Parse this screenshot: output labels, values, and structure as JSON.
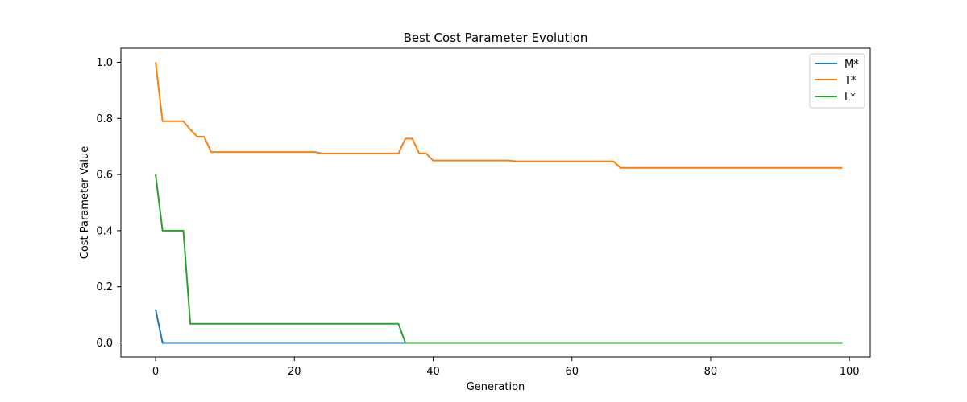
{
  "chart_data": {
    "type": "line",
    "title": "Best Cost Parameter Evolution",
    "xlabel": "Generation",
    "ylabel": "Cost Parameter Value",
    "xlim": [
      -5,
      103
    ],
    "ylim": [
      -0.05,
      1.05
    ],
    "x_ticks": [
      0,
      20,
      40,
      60,
      80,
      100
    ],
    "y_ticks": [
      0.0,
      0.2,
      0.4,
      0.6,
      0.8,
      1.0
    ],
    "x_tick_labels": [
      "0",
      "20",
      "40",
      "60",
      "80",
      "100"
    ],
    "y_tick_labels": [
      "0.0",
      "0.2",
      "0.4",
      "0.6",
      "0.8",
      "1.0"
    ],
    "grid": false,
    "legend": "top-right",
    "series": [
      {
        "name": "M*",
        "color": "#1f77b4",
        "points": [
          [
            0,
            0.12
          ],
          [
            1,
            0.0
          ],
          [
            99,
            0.0
          ]
        ]
      },
      {
        "name": "T*",
        "color": "#ff7f0e",
        "points": [
          [
            0,
            1.0
          ],
          [
            1,
            0.79
          ],
          [
            4,
            0.79
          ],
          [
            5,
            0.76
          ],
          [
            6,
            0.735
          ],
          [
            7,
            0.735
          ],
          [
            8,
            0.68
          ],
          [
            23,
            0.68
          ],
          [
            24,
            0.675
          ],
          [
            35,
            0.675
          ],
          [
            36,
            0.728
          ],
          [
            37,
            0.728
          ],
          [
            38,
            0.675
          ],
          [
            39,
            0.675
          ],
          [
            40,
            0.65
          ],
          [
            51,
            0.65
          ],
          [
            52,
            0.647
          ],
          [
            66,
            0.647
          ],
          [
            67,
            0.624
          ],
          [
            99,
            0.624
          ]
        ]
      },
      {
        "name": "L*",
        "color": "#2ca02c",
        "points": [
          [
            0,
            0.6
          ],
          [
            1,
            0.4
          ],
          [
            4,
            0.4
          ],
          [
            5,
            0.068
          ],
          [
            35,
            0.068
          ],
          [
            36,
            0.0
          ],
          [
            99,
            0.0
          ]
        ]
      }
    ]
  }
}
